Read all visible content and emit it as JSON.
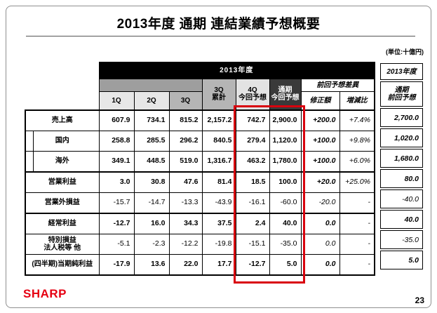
{
  "slide": {
    "title": "2013年度 通期 連結業績予想概要",
    "unit_note": "(単位:十億円)",
    "logo_text": "SHARP",
    "page_number": "23"
  },
  "main_table": {
    "year_header": "2013年度",
    "quarter_headers": [
      "1Q",
      "2Q",
      "3Q"
    ],
    "cum_header": "3Q\n累計",
    "q4_header": "4Q\n今回予想",
    "full_year_header": "通期\n今回予想",
    "diff_header": "前回予想差異",
    "revision_header": "修正額",
    "ratio_header": "増減比",
    "rows": [
      {
        "label": "売上高",
        "indent": false,
        "bold": true,
        "values": [
          "607.9",
          "734.1",
          "815.2",
          "2,157.2",
          "742.7",
          "2,900.0"
        ],
        "revision": "+200.0",
        "ratio": "+7.4%"
      },
      {
        "label": "国内",
        "indent": true,
        "bold": true,
        "values": [
          "258.8",
          "285.5",
          "296.2",
          "840.5",
          "279.4",
          "1,120.0"
        ],
        "revision": "+100.0",
        "ratio": "+9.8%"
      },
      {
        "label": "海外",
        "indent": true,
        "bold": true,
        "values": [
          "349.1",
          "448.5",
          "519.0",
          "1,316.7",
          "463.2",
          "1,780.0"
        ],
        "revision": "+100.0",
        "ratio": "+6.0%"
      },
      {
        "label": "営業利益",
        "indent": false,
        "bold": true,
        "values": [
          "3.0",
          "30.8",
          "47.6",
          "81.4",
          "18.5",
          "100.0"
        ],
        "revision": "+20.0",
        "ratio": "+25.0%"
      },
      {
        "label": "営業外損益",
        "indent": false,
        "bold": false,
        "values": [
          "-15.7",
          "-14.7",
          "-13.3",
          "-43.9",
          "-16.1",
          "-60.0"
        ],
        "revision": "-20.0",
        "ratio": "-"
      },
      {
        "label": "経常利益",
        "indent": false,
        "bold": true,
        "values": [
          "-12.7",
          "16.0",
          "34.3",
          "37.5",
          "2.4",
          "40.0"
        ],
        "revision": "0.0",
        "ratio": "-"
      },
      {
        "label": "特別損益\n法人税等 他",
        "indent": false,
        "bold": false,
        "values": [
          "-5.1",
          "-2.3",
          "-12.2",
          "-19.8",
          "-15.1",
          "-35.0"
        ],
        "revision": "0.0",
        "ratio": "-"
      },
      {
        "label": "(四半期)当期純利益",
        "indent": false,
        "bold": true,
        "values": [
          "-17.9",
          "13.6",
          "22.0",
          "17.7",
          "-12.7",
          "5.0"
        ],
        "revision": "0.0",
        "ratio": "-"
      }
    ]
  },
  "right_table": {
    "year_header": "2013年度",
    "column_header": "通期\n前回予想",
    "values": [
      "2,700.0",
      "1,020.0",
      "1,680.0",
      "80.0",
      "-40.0",
      "40.0",
      "-35.0",
      "5.0"
    ]
  },
  "colors": {
    "accent_red": "#d9000d",
    "logo_red": "#e60012"
  }
}
